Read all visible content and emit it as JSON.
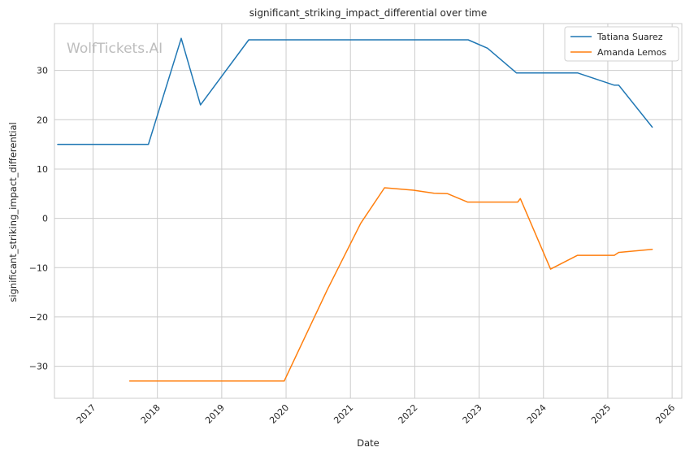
{
  "chart_data": {
    "type": "line",
    "title": "significant_striking_impact_differential over time",
    "xlabel": "Date",
    "ylabel": "significant_striking_impact_differential",
    "watermark": "WolfTickets.AI",
    "xlim": [
      2016.4,
      2026.15
    ],
    "ylim": [
      -36.5,
      39.5
    ],
    "x_ticks": [
      2017,
      2018,
      2019,
      2020,
      2021,
      2022,
      2023,
      2024,
      2025,
      2026
    ],
    "x_tick_labels": [
      "2017",
      "2018",
      "2019",
      "2020",
      "2021",
      "2022",
      "2023",
      "2024",
      "2025",
      "2026"
    ],
    "y_ticks": [
      -30,
      -20,
      -10,
      0,
      10,
      20,
      30
    ],
    "y_tick_labels": [
      "−30",
      "−20",
      "−10",
      "0",
      "10",
      "20",
      "30"
    ],
    "grid": true,
    "legend_position": "top-right",
    "series": [
      {
        "name": "Tatiana Suarez",
        "color": "#1f77b4",
        "x": [
          2016.45,
          2017.86,
          2018.37,
          2018.67,
          2019.42,
          2022.83,
          2023.13,
          2023.58,
          2024.53,
          2025.1,
          2025.17,
          2025.69
        ],
        "y": [
          15.0,
          15.0,
          36.5,
          23.0,
          36.2,
          36.2,
          34.5,
          29.5,
          29.5,
          27.0,
          27.0,
          18.5
        ]
      },
      {
        "name": "Amanda Lemos",
        "color": "#ff7f0e",
        "x": [
          2017.57,
          2019.97,
          2020.64,
          2021.16,
          2021.53,
          2021.98,
          2022.3,
          2022.51,
          2022.82,
          2023.6,
          2023.64,
          2024.11,
          2024.53,
          2025.1,
          2025.17,
          2025.69
        ],
        "y": [
          -33.0,
          -33.0,
          -14.5,
          -1.0,
          6.2,
          5.7,
          5.1,
          5.0,
          3.3,
          3.3,
          4.0,
          -10.3,
          -7.5,
          -7.5,
          -6.9,
          -6.3
        ]
      }
    ]
  }
}
